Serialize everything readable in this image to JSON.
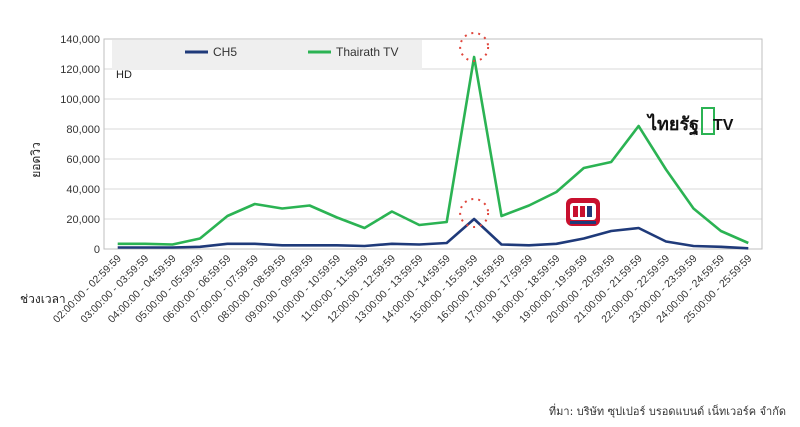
{
  "chart_data": {
    "type": "line",
    "title": "",
    "ylabel": "ยอดวิว",
    "xlabel": "ช่วงเวลา",
    "ylim": [
      0,
      140000
    ],
    "yticks": [
      "0",
      "20,000",
      "40,000",
      "60,000",
      "80,000",
      "100,000",
      "120,000",
      "140,000"
    ],
    "grid": true,
    "legend": "top-left",
    "legend_note": "HD",
    "categories": [
      "02:00:00 - 02:59:59",
      "03:00:00 - 03:59:59",
      "04:00:00 - 04:59:59",
      "05:00:00 - 05:59:59",
      "06:00:00 - 06:59:59",
      "07:00:00 - 07:59:59",
      "08:00:00 - 08:59:59",
      "09:00:00 - 09:59:59",
      "10:00:00 - 10:59:59",
      "11:00:00 - 11:59:59",
      "12:00:00 - 12:59:59",
      "13:00:00 - 13:59:59",
      "14:00:00 - 14:59:59",
      "15:00:00 - 15:59:59",
      "16:00:00 - 16:59:59",
      "17:00:00 - 17:59:59",
      "18:00:00 - 18:59:59",
      "19:00:00 - 19:59:59",
      "20:00:00 - 20:59:59",
      "21:00:00 - 21:59:59",
      "22:00:00 - 22:59:59",
      "23:00:00 - 23:59:59",
      "24:00:00 - 24:59:59",
      "25:00:00 - 25:59:59"
    ],
    "series": [
      {
        "name": "CH5",
        "color": "#1f3a7a",
        "values": [
          1000,
          1000,
          1000,
          1500,
          3500,
          3500,
          2500,
          2500,
          2500,
          2000,
          3500,
          3000,
          4000,
          20000,
          3000,
          2500,
          3500,
          7000,
          12000,
          14000,
          5000,
          2000,
          1500,
          500
        ]
      },
      {
        "name": "Thairath TV",
        "color": "#2bb353",
        "values": [
          3500,
          3500,
          3000,
          7000,
          22000,
          30000,
          27000,
          29000,
          21000,
          14000,
          25000,
          16000,
          18000,
          128000,
          22000,
          29000,
          38000,
          54000,
          58000,
          82000,
          53000,
          27000,
          12000,
          4000
        ]
      }
    ],
    "highlight_index": 13
  },
  "logos": {
    "thairath_text": "ไทยรัฐ",
    "thairath_tv": "TV",
    "ch5_icon": "ch5-logo-icon"
  },
  "source": "ที่มา: บริษัท ซุปเปอร์ บรอดแบนด์ เน็ทเวอร์ค จำกัด"
}
